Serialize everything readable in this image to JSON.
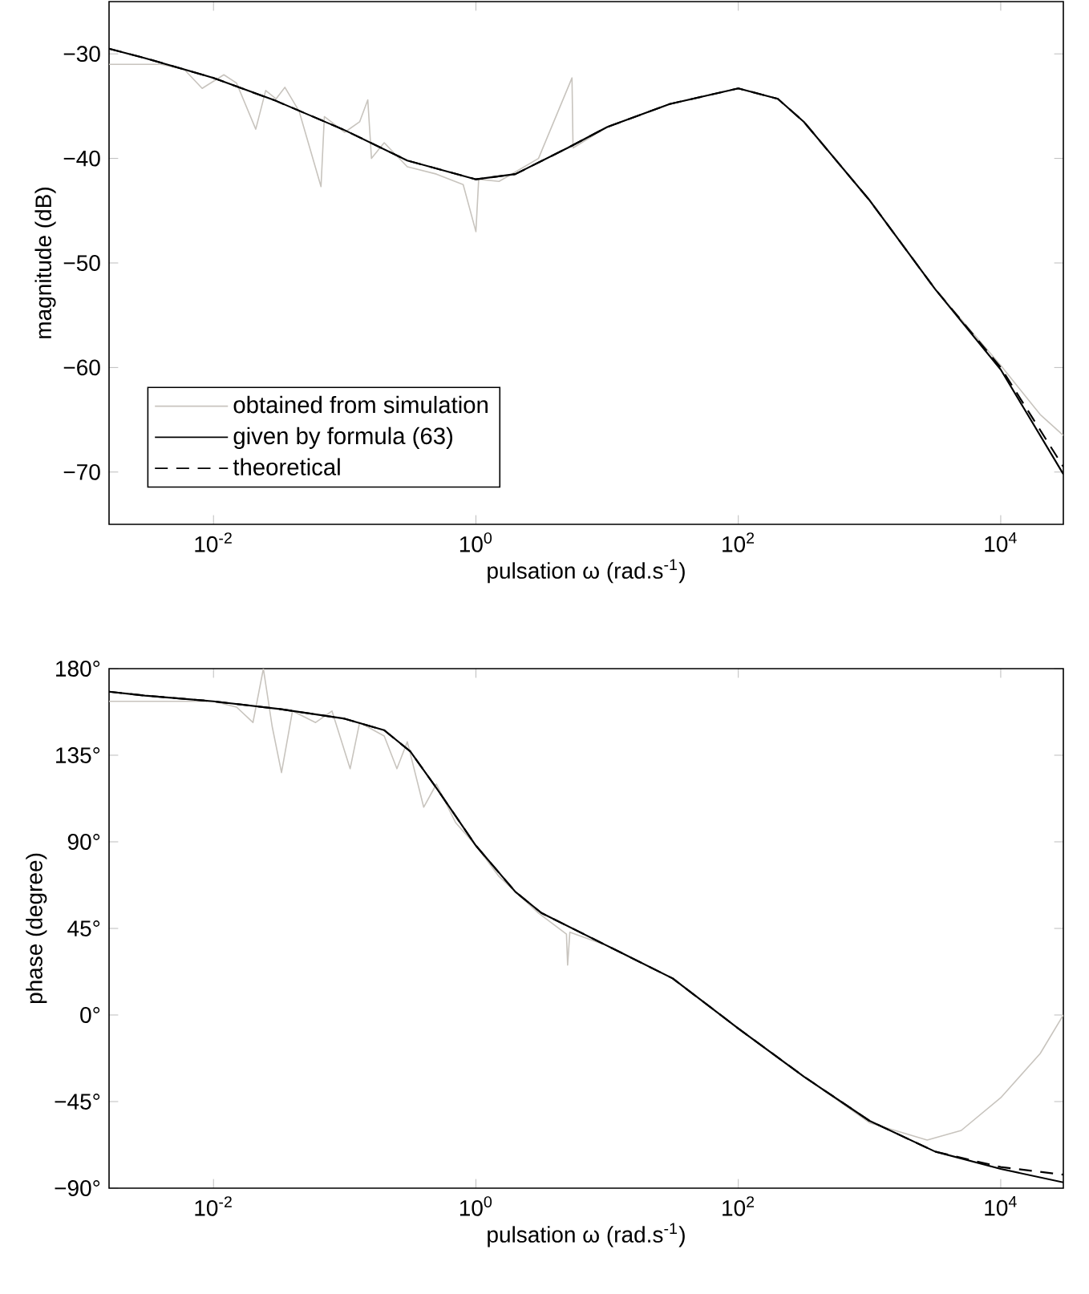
{
  "chart_data": [
    {
      "type": "line",
      "ylabel": "magnitude (dB)",
      "xlabel": "pulsation ω (rad.s$^{-1}$)",
      "log": "x",
      "xlim": [
        0.0016,
        30000
      ],
      "ylim": [
        -75,
        -25
      ],
      "xticks": [
        {
          "value": 0.01,
          "label": "10$^{-2}$"
        },
        {
          "value": 1,
          "label": "10$^{0}$"
        },
        {
          "value": 100,
          "label": "10$^{2}$"
        },
        {
          "value": 10000,
          "label": "10$^{4}$"
        }
      ],
      "yticks": [
        {
          "value": -30,
          "label": "−30"
        },
        {
          "value": -40,
          "label": "−40"
        },
        {
          "value": -50,
          "label": "−50"
        },
        {
          "value": -60,
          "label": "−60"
        },
        {
          "value": -70,
          "label": "−70"
        }
      ],
      "legend": "bottom left",
      "series": [
        {
          "name": "obtained from simulation",
          "color": "#c8c4be",
          "line_style": "solid",
          "x": [
            0.0016,
            0.004,
            0.006,
            0.0082,
            0.012,
            0.015,
            0.021,
            0.025,
            0.03,
            0.035,
            0.045,
            0.066,
            0.07,
            0.1,
            0.13,
            0.15,
            0.16,
            0.2,
            0.3,
            0.5,
            0.8,
            1,
            1.05,
            1.5,
            2,
            3,
            5.4,
            5.5,
            10,
            30,
            100,
            200,
            316,
            1000,
            3162,
            10000,
            20000,
            30000
          ],
          "values": [
            -31,
            -31,
            -31.5,
            -33.3,
            -32,
            -32.8,
            -37.2,
            -33.5,
            -34.3,
            -33.2,
            -35.5,
            -42.7,
            -36,
            -37.5,
            -36.5,
            -34.4,
            -40,
            -38.5,
            -40.8,
            -41.5,
            -42.5,
            -47,
            -42,
            -42.2,
            -41.3,
            -40,
            -32.3,
            -39,
            -37,
            -34.8,
            -33.3,
            -34.3,
            -36.5,
            -44,
            -52.5,
            -59.8,
            -64.5,
            -66.5
          ]
        },
        {
          "name": "given by formula (63)",
          "color": "#000000",
          "line_style": "solid",
          "x": [
            0.0016,
            0.003,
            0.01,
            0.03,
            0.1,
            0.3,
            1,
            2,
            5,
            10,
            30,
            100,
            200,
            316,
            1000,
            3162,
            10000,
            30000
          ],
          "values": [
            -29.5,
            -30.4,
            -32.3,
            -34.5,
            -37.3,
            -40.2,
            -42,
            -41.5,
            -39,
            -37,
            -34.8,
            -33.3,
            -34.3,
            -36.5,
            -44,
            -52.5,
            -60.2,
            -70.2
          ]
        },
        {
          "name": "theoretical",
          "color": "#000000",
          "line_style": "dashed",
          "x": [
            0.0016,
            0.003,
            0.01,
            0.03,
            0.1,
            0.3,
            1,
            2,
            5,
            10,
            30,
            100,
            200,
            316,
            1000,
            3162,
            10000,
            30000
          ],
          "values": [
            -29.5,
            -30.4,
            -32.3,
            -34.5,
            -37.3,
            -40.2,
            -42,
            -41.5,
            -39,
            -37,
            -34.8,
            -33.3,
            -34.3,
            -36.5,
            -44,
            -52.5,
            -60,
            -69.5
          ]
        }
      ]
    },
    {
      "type": "line",
      "ylabel": "phase (degree)",
      "xlabel": "pulsation ω (rad.s$^{-1}$)",
      "log": "x",
      "xlim": [
        0.0016,
        30000
      ],
      "ylim": [
        -90,
        180
      ],
      "xticks": [
        {
          "value": 0.01,
          "label": "10$^{-2}$"
        },
        {
          "value": 1,
          "label": "10$^{0}$"
        },
        {
          "value": 100,
          "label": "10$^{2}$"
        },
        {
          "value": 10000,
          "label": "10$^{4}$"
        }
      ],
      "yticks": [
        {
          "value": 180,
          "label": "180°"
        },
        {
          "value": 135,
          "label": "135°"
        },
        {
          "value": 90,
          "label": "90°"
        },
        {
          "value": 45,
          "label": "45°"
        },
        {
          "value": 0,
          "label": "0°"
        },
        {
          "value": -45,
          "label": "−45°"
        },
        {
          "value": -90,
          "label": "−90°"
        }
      ],
      "series": [
        {
          "color": "#c8c4be",
          "line_style": "solid",
          "x": [
            0.0016,
            0.005,
            0.01,
            0.015,
            0.02,
            0.024,
            0.028,
            0.033,
            0.04,
            0.06,
            0.08,
            0.11,
            0.13,
            0.2,
            0.25,
            0.3,
            0.4,
            0.5,
            0.7,
            1,
            1.5,
            2,
            3,
            4.9,
            5,
            5.2,
            10,
            31.6,
            100,
            316,
            1000,
            2750,
            5000,
            10000,
            20000,
            30000
          ],
          "values": [
            163,
            163,
            163,
            160,
            152,
            180,
            150,
            126,
            158,
            152,
            158,
            128,
            152,
            145,
            128,
            142,
            108,
            120,
            100,
            88,
            72,
            64,
            53,
            42,
            26,
            43,
            36,
            19,
            -7,
            -32,
            -56,
            -65,
            -60,
            -43,
            -20,
            0
          ]
        },
        {
          "color": "#000000",
          "line_style": "solid",
          "x": [
            0.0016,
            0.003,
            0.01,
            0.032,
            0.1,
            0.2,
            0.316,
            0.5,
            1,
            2,
            3.16,
            10,
            31.6,
            100,
            316,
            1000,
            3162,
            10000,
            30000
          ],
          "values": [
            168,
            166,
            163,
            159,
            154,
            148,
            137,
            118,
            88,
            64,
            53,
            36,
            19,
            -7,
            -32,
            -55,
            -71,
            -80,
            -87
          ]
        },
        {
          "color": "#000000",
          "line_style": "dashed",
          "x": [
            0.0016,
            0.003,
            0.01,
            0.032,
            0.1,
            0.2,
            0.316,
            0.5,
            1,
            2,
            3.16,
            10,
            31.6,
            100,
            316,
            1000,
            3162,
            10000,
            30000
          ],
          "values": [
            168,
            166,
            163,
            159,
            154,
            148,
            137,
            118,
            88,
            64,
            53,
            36,
            19,
            -7,
            -32,
            -55,
            -71,
            -79,
            -83
          ]
        }
      ]
    }
  ]
}
